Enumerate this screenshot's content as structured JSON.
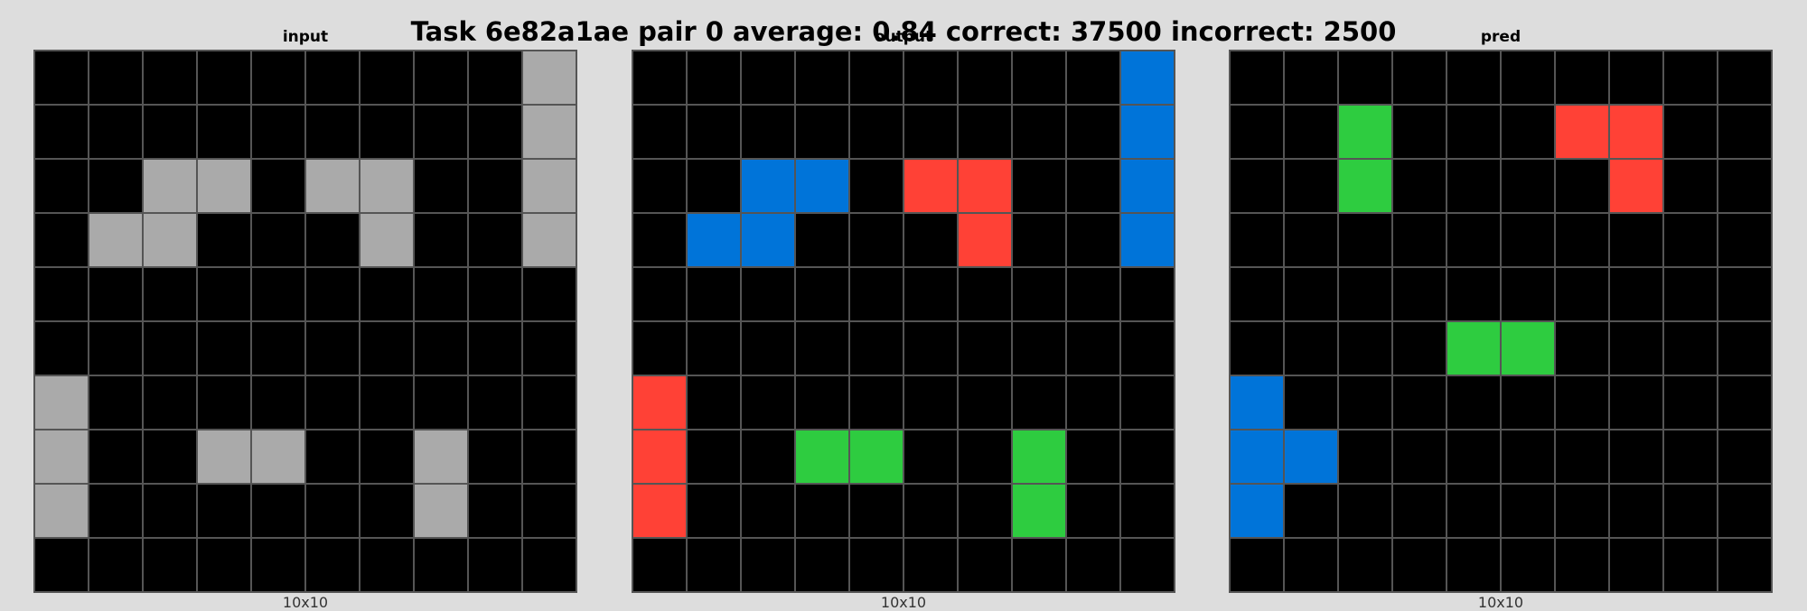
{
  "title": "Task 6e82a1ae pair 0 average: 0.84 correct: 37500 incorrect: 2500",
  "palette": {
    "0": "#000000",
    "1": "#0074d9",
    "2": "#ff4136",
    "3": "#2ecc40",
    "5": "#aaaaaa"
  },
  "panels": [
    {
      "label": "input",
      "size": "10x10",
      "grid": [
        [
          0,
          0,
          0,
          0,
          0,
          0,
          0,
          0,
          0,
          5
        ],
        [
          0,
          0,
          0,
          0,
          0,
          0,
          0,
          0,
          0,
          5
        ],
        [
          0,
          0,
          5,
          5,
          0,
          5,
          5,
          0,
          0,
          5
        ],
        [
          0,
          5,
          5,
          0,
          0,
          0,
          5,
          0,
          0,
          5
        ],
        [
          0,
          0,
          0,
          0,
          0,
          0,
          0,
          0,
          0,
          0
        ],
        [
          0,
          0,
          0,
          0,
          0,
          0,
          0,
          0,
          0,
          0
        ],
        [
          5,
          0,
          0,
          0,
          0,
          0,
          0,
          0,
          0,
          0
        ],
        [
          5,
          0,
          0,
          5,
          5,
          0,
          0,
          5,
          0,
          0
        ],
        [
          5,
          0,
          0,
          0,
          0,
          0,
          0,
          5,
          0,
          0
        ],
        [
          0,
          0,
          0,
          0,
          0,
          0,
          0,
          0,
          0,
          0
        ]
      ]
    },
    {
      "label": "output",
      "size": "10x10",
      "grid": [
        [
          0,
          0,
          0,
          0,
          0,
          0,
          0,
          0,
          0,
          1
        ],
        [
          0,
          0,
          0,
          0,
          0,
          0,
          0,
          0,
          0,
          1
        ],
        [
          0,
          0,
          1,
          1,
          0,
          2,
          2,
          0,
          0,
          1
        ],
        [
          0,
          1,
          1,
          0,
          0,
          0,
          2,
          0,
          0,
          1
        ],
        [
          0,
          0,
          0,
          0,
          0,
          0,
          0,
          0,
          0,
          0
        ],
        [
          0,
          0,
          0,
          0,
          0,
          0,
          0,
          0,
          0,
          0
        ],
        [
          2,
          0,
          0,
          0,
          0,
          0,
          0,
          0,
          0,
          0
        ],
        [
          2,
          0,
          0,
          3,
          3,
          0,
          0,
          3,
          0,
          0
        ],
        [
          2,
          0,
          0,
          0,
          0,
          0,
          0,
          3,
          0,
          0
        ],
        [
          0,
          0,
          0,
          0,
          0,
          0,
          0,
          0,
          0,
          0
        ]
      ]
    },
    {
      "label": "pred",
      "size": "10x10",
      "grid": [
        [
          0,
          0,
          0,
          0,
          0,
          0,
          0,
          0,
          0,
          0
        ],
        [
          0,
          0,
          3,
          0,
          0,
          0,
          2,
          2,
          0,
          0
        ],
        [
          0,
          0,
          3,
          0,
          0,
          0,
          0,
          2,
          0,
          0
        ],
        [
          0,
          0,
          0,
          0,
          0,
          0,
          0,
          0,
          0,
          0
        ],
        [
          0,
          0,
          0,
          0,
          0,
          0,
          0,
          0,
          0,
          0
        ],
        [
          0,
          0,
          0,
          0,
          3,
          3,
          0,
          0,
          0,
          0
        ],
        [
          1,
          0,
          0,
          0,
          0,
          0,
          0,
          0,
          0,
          0
        ],
        [
          1,
          1,
          0,
          0,
          0,
          0,
          0,
          0,
          0,
          0
        ],
        [
          1,
          0,
          0,
          0,
          0,
          0,
          0,
          0,
          0,
          0
        ],
        [
          0,
          0,
          0,
          0,
          0,
          0,
          0,
          0,
          0,
          0
        ]
      ]
    }
  ]
}
